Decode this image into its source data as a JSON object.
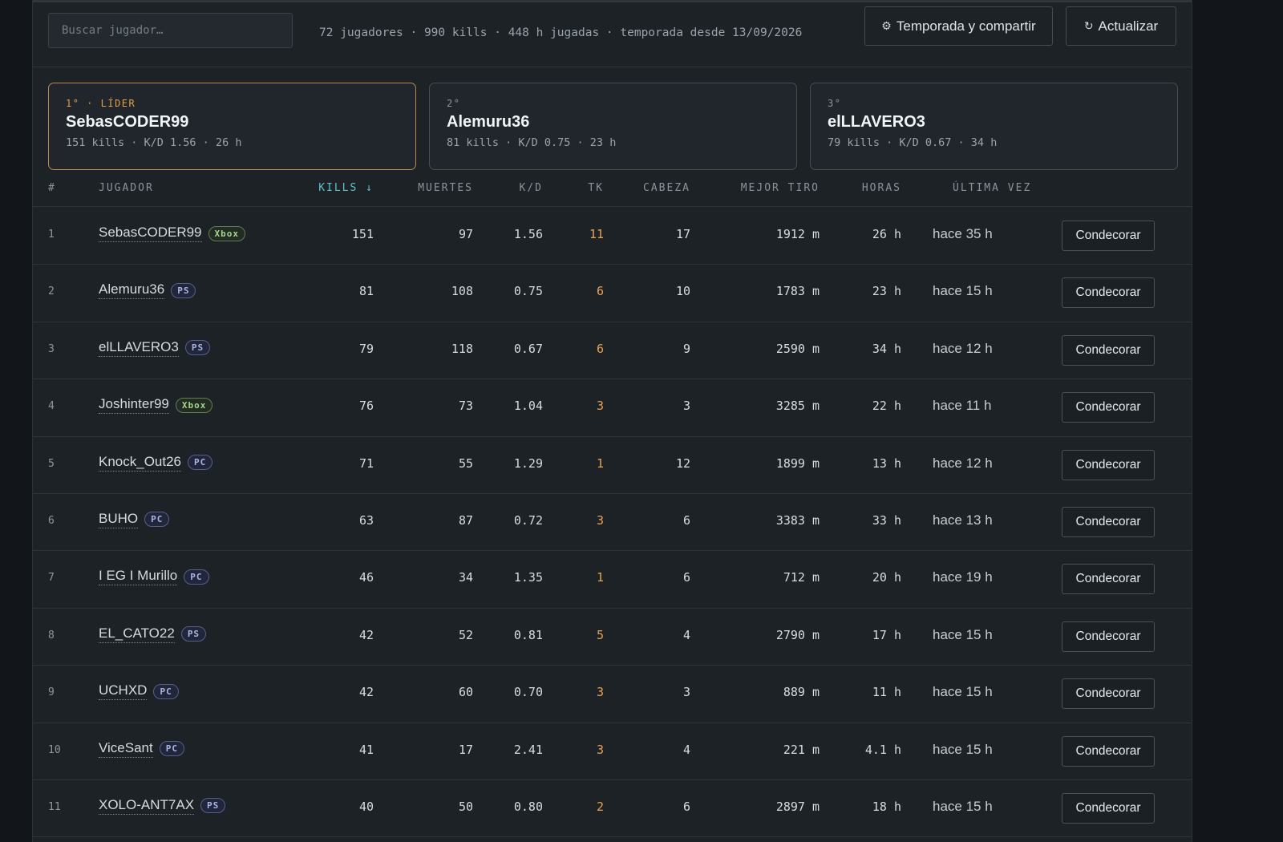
{
  "toolbar": {
    "search_placeholder": "Buscar jugador…",
    "summary": "72 jugadores · 990 kills · 448 h jugadas · temporada desde 13/09/2026",
    "season_button": "Temporada y compartir",
    "season_icon": "⚙",
    "refresh_button": "Actualizar",
    "refresh_icon": "↻"
  },
  "podium": [
    {
      "rank": "1° · LÍDER",
      "name": "SebasCODER99",
      "stats": "151 kills · K/D 1.56 · 26 h"
    },
    {
      "rank": "2°",
      "name": "Alemuru36",
      "stats": "81 kills · K/D 0.75 · 23 h"
    },
    {
      "rank": "3°",
      "name": "elLLAVERO3",
      "stats": "79 kills · K/D 0.67 · 34 h"
    }
  ],
  "columns": {
    "num": "#",
    "player": "JUGADOR",
    "kills": "KILLS ↓",
    "deaths": "MUERTES",
    "kd": "K/D",
    "tk": "TK",
    "head": "CABEZA",
    "best": "MEJOR TIRO",
    "hours": "HORAS",
    "last": "ÚLTIMA VEZ"
  },
  "decorate_label": "Condecorar",
  "rows": [
    {
      "num": "1",
      "name": "SebasCODER99",
      "platform": "Xbox",
      "kills": "151",
      "deaths": "97",
      "kd": "1.56",
      "tk": "11",
      "head": "17",
      "best": "1912 m",
      "hours": "26 h",
      "last": "hace 35 h"
    },
    {
      "num": "2",
      "name": "Alemuru36",
      "platform": "PS",
      "kills": "81",
      "deaths": "108",
      "kd": "0.75",
      "tk": "6",
      "head": "10",
      "best": "1783 m",
      "hours": "23 h",
      "last": "hace 15 h"
    },
    {
      "num": "3",
      "name": "elLLAVERO3",
      "platform": "PS",
      "kills": "79",
      "deaths": "118",
      "kd": "0.67",
      "tk": "6",
      "head": "9",
      "best": "2590 m",
      "hours": "34 h",
      "last": "hace 12 h"
    },
    {
      "num": "4",
      "name": "Joshinter99",
      "platform": "Xbox",
      "kills": "76",
      "deaths": "73",
      "kd": "1.04",
      "tk": "3",
      "head": "3",
      "best": "3285 m",
      "hours": "22 h",
      "last": "hace 11 h"
    },
    {
      "num": "5",
      "name": "Knock_Out26",
      "platform": "PC",
      "kills": "71",
      "deaths": "55",
      "kd": "1.29",
      "tk": "1",
      "head": "12",
      "best": "1899 m",
      "hours": "13 h",
      "last": "hace 12 h"
    },
    {
      "num": "6",
      "name": "BUHO",
      "platform": "PC",
      "kills": "63",
      "deaths": "87",
      "kd": "0.72",
      "tk": "3",
      "head": "6",
      "best": "3383 m",
      "hours": "33 h",
      "last": "hace 13 h"
    },
    {
      "num": "7",
      "name": "I EG I Murillo",
      "platform": "PC",
      "kills": "46",
      "deaths": "34",
      "kd": "1.35",
      "tk": "1",
      "head": "6",
      "best": "712 m",
      "hours": "20 h",
      "last": "hace 19 h"
    },
    {
      "num": "8",
      "name": "EL_CATO22",
      "platform": "PS",
      "kills": "42",
      "deaths": "52",
      "kd": "0.81",
      "tk": "5",
      "head": "4",
      "best": "2790 m",
      "hours": "17 h",
      "last": "hace 15 h"
    },
    {
      "num": "9",
      "name": "UCHXD",
      "platform": "PC",
      "kills": "42",
      "deaths": "60",
      "kd": "0.70",
      "tk": "3",
      "head": "3",
      "best": "889 m",
      "hours": "11 h",
      "last": "hace 15 h"
    },
    {
      "num": "10",
      "name": "ViceSant",
      "platform": "PC",
      "kills": "41",
      "deaths": "17",
      "kd": "2.41",
      "tk": "3",
      "head": "4",
      "best": "221 m",
      "hours": "4.1 h",
      "last": "hace 15 h"
    },
    {
      "num": "11",
      "name": "XOLO-ANT7AX",
      "platform": "PS",
      "kills": "40",
      "deaths": "50",
      "kd": "0.80",
      "tk": "2",
      "head": "6",
      "best": "2897 m",
      "hours": "18 h",
      "last": "hace 15 h"
    }
  ]
}
